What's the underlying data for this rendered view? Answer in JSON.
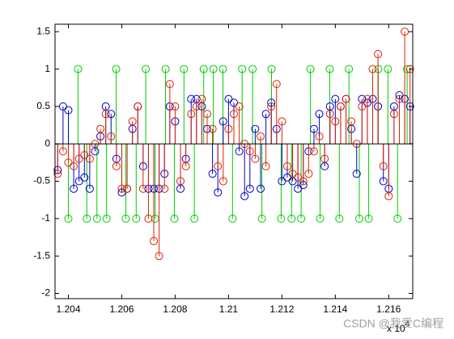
{
  "chart_data": {
    "type": "stem",
    "xlim": [
      12035,
      12169
    ],
    "ylim": [
      -2.07,
      1.6
    ],
    "xticks": [
      {
        "value": 12040,
        "label": "1.204"
      },
      {
        "value": 12060,
        "label": "1.206"
      },
      {
        "value": 12080,
        "label": "1.208"
      },
      {
        "value": 12100,
        "label": "1.21"
      },
      {
        "value": 12120,
        "label": "1.212"
      },
      {
        "value": 12140,
        "label": "1.214"
      },
      {
        "value": 12160,
        "label": "1.216"
      }
    ],
    "yticks": [
      -2,
      -1.5,
      -1,
      -0.5,
      0,
      0.5,
      1,
      1.5
    ],
    "x_exponent_label": "x 10",
    "x_exponent": "4",
    "watermark": "CSDN @我爱C编程",
    "x": [
      12036,
      12038,
      12040,
      12042,
      12044,
      12046,
      12048,
      12050,
      12052,
      12054,
      12056,
      12058,
      12060,
      12062,
      12064,
      12066,
      12068,
      12070,
      12072,
      12074,
      12076,
      12078,
      12080,
      12082,
      12084,
      12086,
      12088,
      12090,
      12092,
      12094,
      12096,
      12098,
      12100,
      12102,
      12104,
      12106,
      12108,
      12110,
      12112,
      12114,
      12116,
      12118,
      12120,
      12122,
      12124,
      12126,
      12128,
      12130,
      12132,
      12134,
      12136,
      12138,
      12140,
      12142,
      12144,
      12146,
      12148,
      12150,
      12152,
      12154,
      12156,
      12158,
      12160,
      12162,
      12164,
      12166,
      12168
    ],
    "series": [
      {
        "color": "#00cc00",
        "x": [
          12040,
          12043.6,
          12046.9,
          12050.7,
          12054.3,
          12057.9,
          12061.5,
          12065.4,
          12069,
          12072.5,
          12076.4,
          12079.7,
          12083.3,
          12087.2,
          12090.7,
          12094.3,
          12097.9,
          12101.5,
          12105.1,
          12109,
          12112.5,
          12116.1,
          12119.7,
          12123.6,
          12127.2,
          12130.7,
          12134.3,
          12137.9,
          12141.5,
          12145.1,
          12149,
          12152.5,
          12156.1,
          12159.7,
          12163.3,
          12166.9
        ],
        "values": [
          -1,
          1,
          -1,
          -1,
          -1,
          1,
          -1,
          -1,
          1,
          -1,
          1,
          -1,
          1,
          -1,
          1,
          1,
          1,
          -1,
          1,
          1,
          -1,
          1,
          -1,
          -1,
          -1,
          1,
          -1,
          1,
          -1,
          1,
          -1,
          -1,
          1,
          1,
          -1,
          1
        ]
      },
      {
        "color": "#0000cc",
        "values": [
          -0.35,
          0.5,
          0.45,
          -0.6,
          -0.5,
          -0.45,
          -0.6,
          -0.1,
          0.1,
          0.5,
          0.4,
          -0.2,
          -0.65,
          -0.6,
          0.2,
          0.5,
          -0.3,
          -0.6,
          -0.6,
          -0.6,
          -0.4,
          0.5,
          0.3,
          -0.6,
          -0.2,
          0.6,
          0.6,
          0.5,
          0.2,
          -0.4,
          -0.65,
          0.3,
          0.6,
          0.55,
          -0.1,
          -0.7,
          -0.6,
          0.2,
          -0.6,
          0.4,
          0.55,
          0.2,
          -0.5,
          -0.45,
          -0.5,
          -0.6,
          -0.55,
          -0.1,
          0.2,
          0.4,
          -0.3,
          0.5,
          0.6,
          0.5,
          0.6,
          0.2,
          -0.4,
          0.6,
          0.55,
          0.6,
          0.5,
          -0.5,
          -0.6,
          0.5,
          0.65,
          0.6,
          0.5
        ]
      },
      {
        "color": "#dd2200",
        "values": [
          -0.4,
          -0.1,
          -0.25,
          -0.3,
          -0.2,
          -0.15,
          -0.2,
          0,
          0.2,
          0.4,
          0.1,
          -0.3,
          -0.6,
          -0.6,
          0.3,
          0.5,
          -0.6,
          -1,
          -1.3,
          -1.5,
          -0.6,
          0.8,
          0.5,
          -0.5,
          -0.3,
          0.4,
          0.5,
          0.6,
          0.4,
          0.2,
          -0.3,
          -0.5,
          0.2,
          0.4,
          0.5,
          0,
          -0.1,
          -0.2,
          0.1,
          -0.3,
          0.5,
          0.8,
          0.3,
          -0.3,
          -0.4,
          -0.45,
          -0.5,
          -0.4,
          -0.1,
          0.1,
          -0.2,
          0.4,
          0.3,
          0.5,
          0.6,
          0.3,
          0,
          0.5,
          0.6,
          1,
          1.2,
          -0.3,
          -0.7,
          0.4,
          0.6,
          1.5,
          1
        ]
      }
    ]
  }
}
